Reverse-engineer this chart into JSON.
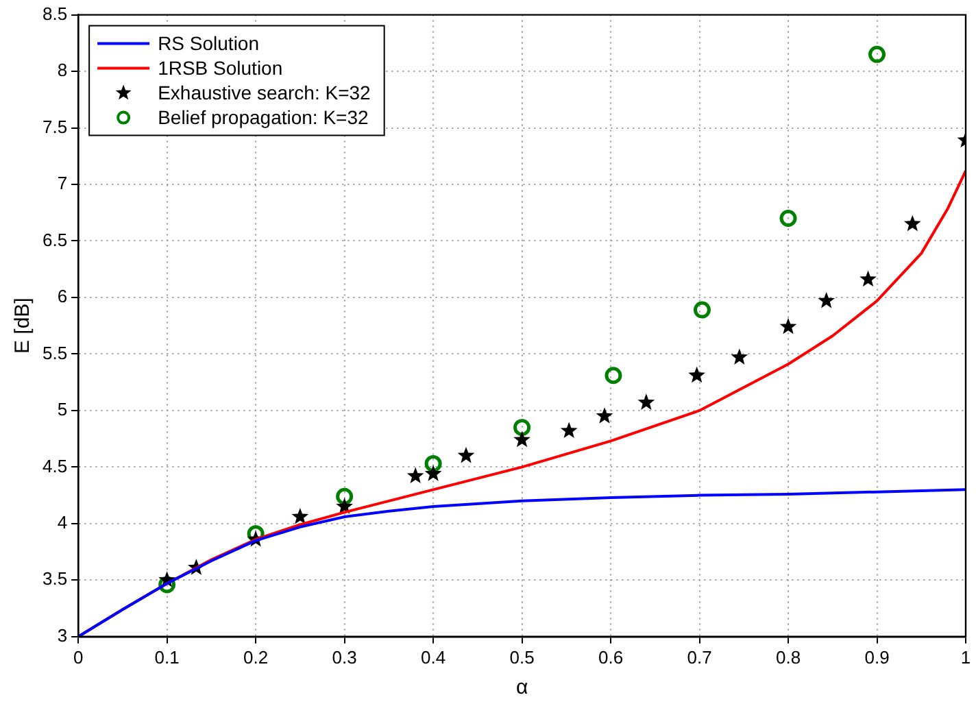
{
  "chart_data": {
    "type": "line",
    "xlabel": "α",
    "ylabel": "E [dB]",
    "xlim": [
      0,
      1
    ],
    "xticks": [
      0,
      0.1,
      0.2,
      0.3,
      0.4,
      0.5,
      0.6,
      0.7,
      0.8,
      0.9,
      1
    ],
    "ylim": [
      3,
      8.5
    ],
    "yticks": [
      3,
      3.5,
      4,
      4.5,
      5,
      5.5,
      6,
      6.5,
      7,
      7.5,
      8,
      8.5
    ],
    "grid": true,
    "legend": "top left",
    "line_style": "solid",
    "series": [
      {
        "name": "RS Solution",
        "color": "#0000ff",
        "marker": "none",
        "x": [
          0,
          0.05,
          0.1,
          0.15,
          0.2,
          0.25,
          0.3,
          0.35,
          0.4,
          0.5,
          0.6,
          0.7,
          0.8,
          0.9,
          1
        ],
        "values": [
          3,
          3.24,
          3.47,
          3.67,
          3.85,
          3.97,
          4.06,
          4.11,
          4.15,
          4.2,
          4.23,
          4.25,
          4.26,
          4.28,
          4.3
        ]
      },
      {
        "name": "1RSB Solution",
        "color": "#ff0000",
        "marker": "none",
        "x": [
          0,
          0.05,
          0.1,
          0.15,
          0.2,
          0.25,
          0.3,
          0.4,
          0.5,
          0.6,
          0.7,
          0.8,
          0.85,
          0.9,
          0.95,
          0.98,
          1
        ],
        "values": [
          3,
          3.24,
          3.47,
          3.68,
          3.86,
          3.99,
          4.1,
          4.3,
          4.5,
          4.73,
          5.0,
          5.41,
          5.66,
          5.97,
          6.39,
          6.79,
          7.12
        ]
      },
      {
        "name": "Exhaustive search: K=32",
        "type": "scatter",
        "color": "#000000",
        "marker": "star",
        "x": [
          0.1,
          0.133,
          0.2,
          0.25,
          0.3,
          0.38,
          0.4,
          0.437,
          0.5,
          0.553,
          0.593,
          0.64,
          0.697,
          0.745,
          0.8,
          0.843,
          0.89,
          0.94,
          1.0
        ],
        "values": [
          3.5,
          3.61,
          3.86,
          4.06,
          4.15,
          4.42,
          4.44,
          4.6,
          4.74,
          4.82,
          4.95,
          5.07,
          5.31,
          5.47,
          5.74,
          5.97,
          6.16,
          6.65,
          7.39
        ]
      },
      {
        "name": "Belief propagation: K=32",
        "type": "scatter",
        "color": "#008000",
        "marker": "circle",
        "x": [
          0.1,
          0.2,
          0.3,
          0.4,
          0.5,
          0.603,
          0.703,
          0.8,
          0.9
        ],
        "values": [
          3.46,
          3.91,
          4.24,
          4.53,
          4.85,
          5.31,
          5.89,
          6.7,
          8.15
        ]
      }
    ]
  }
}
